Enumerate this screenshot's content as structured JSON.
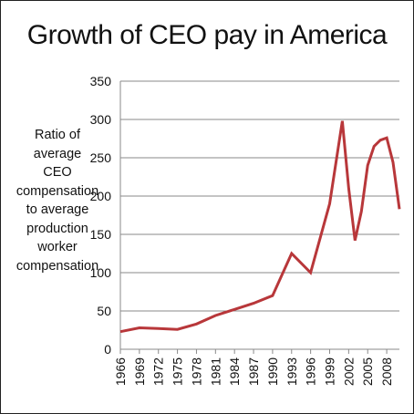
{
  "chart_data": {
    "type": "line",
    "title": "Growth of CEO pay in America",
    "ylabel_lines": [
      "Ratio of",
      "average",
      "CEO",
      "compensation",
      "to average",
      "production",
      "worker",
      "compensation"
    ],
    "xlabel": "",
    "ylim": [
      0,
      350
    ],
    "yticks": [
      0,
      50,
      100,
      150,
      200,
      250,
      300,
      350
    ],
    "xlim": [
      1966,
      2010
    ],
    "xticks": [
      "1966",
      "1969",
      "1972",
      "1975",
      "1978",
      "1981",
      "1984",
      "1987",
      "1990",
      "1993",
      "1996",
      "1999",
      "2002",
      "2005",
      "2008"
    ],
    "grid": "horizontal",
    "legend": "none",
    "series": [
      {
        "color": "#B8373A",
        "x": [
          1966,
          1969,
          1972,
          1975,
          1978,
          1981,
          1984,
          1987,
          1990,
          1993,
          1996,
          1999,
          2001,
          2002,
          2003,
          2004,
          2005,
          2006,
          2007,
          2008,
          2009,
          2010
        ],
        "y": [
          23,
          28,
          27,
          26,
          33,
          44,
          52,
          60,
          70,
          125,
          100,
          190,
          298,
          210,
          142,
          180,
          240,
          265,
          273,
          276,
          244,
          183
        ]
      }
    ]
  }
}
